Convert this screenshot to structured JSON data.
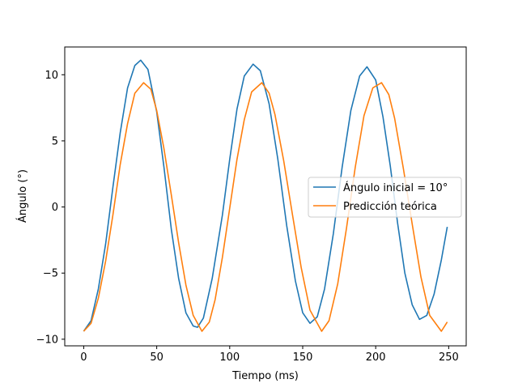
{
  "chart_data": {
    "type": "line",
    "title": "",
    "xlabel": "Tiempo (ms)",
    "ylabel": "Ángulo (°)",
    "xlim": [
      -13,
      262
    ],
    "ylim": [
      -10.5,
      12.1
    ],
    "xticks": [
      0,
      50,
      100,
      150,
      200,
      250
    ],
    "yticks": [
      -10,
      -5,
      0,
      5,
      10
    ],
    "ytick_labels": [
      "−10",
      "−5",
      "0",
      "5",
      "10"
    ],
    "grid": false,
    "legend_position": "center-right",
    "series": [
      {
        "name": "Ángulo inicial = 10°",
        "color": "#1f77b4",
        "x": [
          0,
          5,
          10,
          15,
          20,
          25,
          30,
          35,
          39,
          44,
          50,
          55,
          60,
          65,
          70,
          75,
          78,
          82,
          88,
          95,
          100,
          105,
          110,
          116,
          121,
          127,
          133,
          139,
          145,
          150,
          155,
          160,
          165,
          171,
          177,
          183,
          189,
          194,
          200,
          205,
          210,
          215,
          220,
          225,
          230,
          235,
          240,
          245,
          249
        ],
        "y": [
          -9.4,
          -8.6,
          -6.2,
          -2.8,
          1.5,
          5.6,
          9.0,
          10.7,
          11.1,
          10.4,
          7.2,
          3.0,
          -1.7,
          -5.4,
          -8.0,
          -9.0,
          -9.1,
          -8.4,
          -5.4,
          -0.6,
          3.6,
          7.4,
          9.9,
          10.8,
          10.3,
          7.8,
          3.6,
          -1.4,
          -5.6,
          -8.0,
          -8.8,
          -8.3,
          -6.2,
          -2.0,
          3.0,
          7.3,
          9.9,
          10.6,
          9.6,
          6.8,
          3.1,
          -1.2,
          -5.0,
          -7.4,
          -8.5,
          -8.2,
          -6.6,
          -4.0,
          -1.5
        ]
      },
      {
        "name": "Predicción teórica",
        "color": "#ff7f0e",
        "x": [
          0,
          5,
          10,
          15,
          20,
          25,
          30,
          35,
          41,
          46,
          50,
          55,
          60,
          65,
          70,
          75,
          81,
          86,
          90,
          95,
          100,
          105,
          110,
          115,
          122,
          127,
          131,
          137,
          143,
          149,
          155,
          163,
          168,
          174,
          180,
          186,
          192,
          198,
          204,
          209,
          213,
          219,
          225,
          231,
          237,
          245,
          249
        ],
        "y": [
          -9.4,
          -8.8,
          -6.9,
          -4.1,
          -0.6,
          3.2,
          6.3,
          8.6,
          9.4,
          8.9,
          7.3,
          4.4,
          0.9,
          -2.7,
          -5.9,
          -8.2,
          -9.4,
          -8.7,
          -7.0,
          -3.8,
          -0.1,
          3.6,
          6.6,
          8.7,
          9.4,
          8.6,
          7.0,
          3.5,
          -0.6,
          -4.6,
          -7.8,
          -9.4,
          -8.6,
          -5.8,
          -1.6,
          3.0,
          6.9,
          9.0,
          9.4,
          8.5,
          6.7,
          2.9,
          -1.3,
          -5.3,
          -8.2,
          -9.4,
          -8.7
        ]
      }
    ]
  }
}
